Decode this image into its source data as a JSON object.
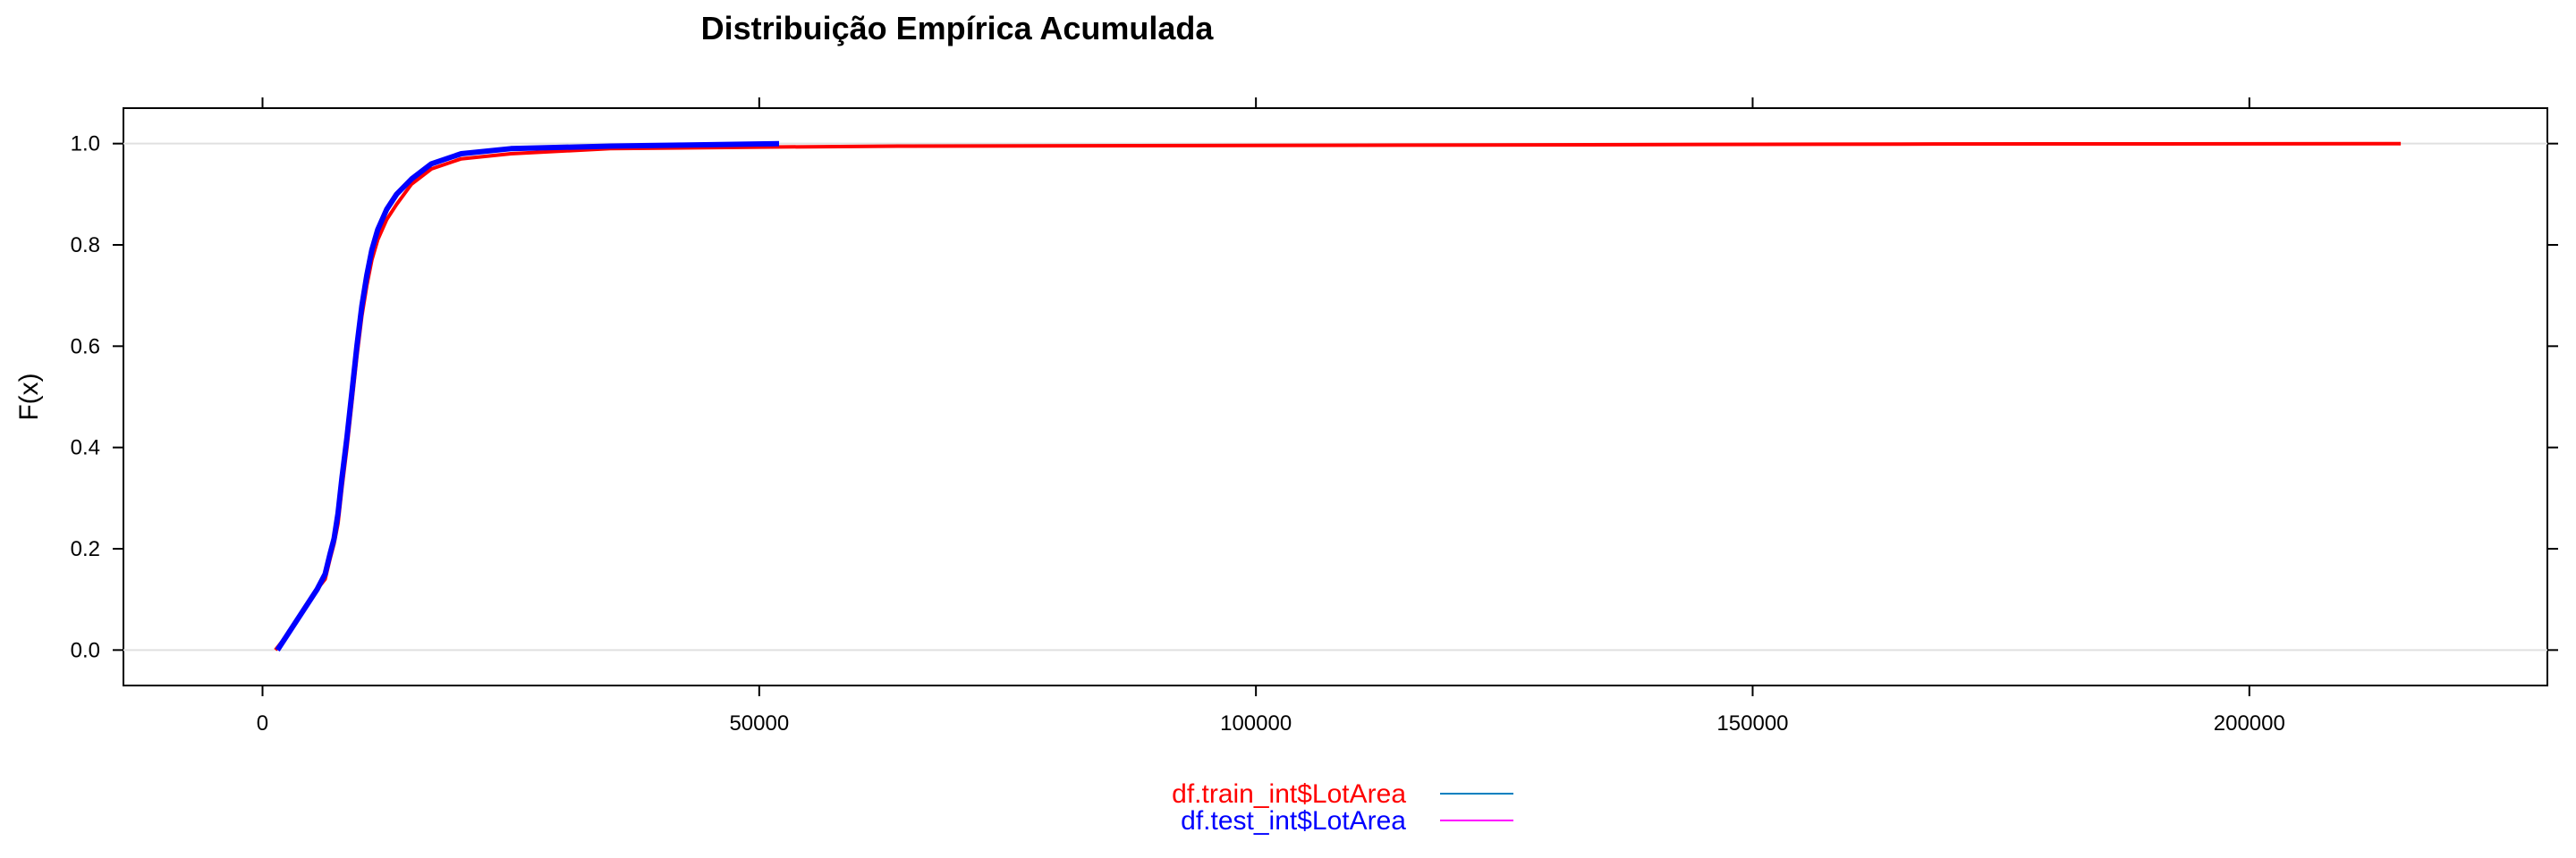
{
  "chart_data": {
    "type": "line",
    "title": "Distribuição Empírica Acumulada",
    "xlabel": "",
    "ylabel": "F(x)",
    "xlim": [
      -14000,
      230000
    ],
    "ylim": [
      -0.07,
      1.07
    ],
    "x_ticks": [
      0,
      50000,
      100000,
      150000,
      200000
    ],
    "x_tick_labels": [
      "0",
      "50000",
      "100000",
      "150000",
      "200000"
    ],
    "y_ticks": [
      0.0,
      0.2,
      0.4,
      0.6,
      0.8,
      1.0
    ],
    "y_tick_labels": [
      "0.0",
      "0.2",
      "0.4",
      "0.6",
      "0.8",
      "1.0"
    ],
    "grid": "horizontal reference lines at 0 and 1",
    "legend_position": "bottom-center",
    "series": [
      {
        "name": "df.train_int$LotArea",
        "color": "#ff0000",
        "legend_line_color": "#0080c0",
        "points": [
          [
            1300,
            0.0
          ],
          [
            2500,
            0.03
          ],
          [
            3500,
            0.06
          ],
          [
            4500,
            0.09
          ],
          [
            5500,
            0.12
          ],
          [
            6300,
            0.14
          ],
          [
            6800,
            0.18
          ],
          [
            7200,
            0.21
          ],
          [
            7600,
            0.25
          ],
          [
            8000,
            0.32
          ],
          [
            8500,
            0.4
          ],
          [
            9000,
            0.49
          ],
          [
            9500,
            0.58
          ],
          [
            10000,
            0.66
          ],
          [
            10500,
            0.72
          ],
          [
            11000,
            0.77
          ],
          [
            11600,
            0.81
          ],
          [
            12500,
            0.85
          ],
          [
            13500,
            0.88
          ],
          [
            15000,
            0.92
          ],
          [
            17000,
            0.95
          ],
          [
            20000,
            0.97
          ],
          [
            25000,
            0.98
          ],
          [
            35000,
            0.99
          ],
          [
            50000,
            0.993
          ],
          [
            64000,
            0.995
          ],
          [
            115000,
            0.997
          ],
          [
            165000,
            0.999
          ],
          [
            215245,
            1.0
          ]
        ]
      },
      {
        "name": "df.test_int$LotArea",
        "color": "#0000ff",
        "legend_line_color": "#ff00ff",
        "points": [
          [
            1500,
            0.0
          ],
          [
            2500,
            0.03
          ],
          [
            3500,
            0.06
          ],
          [
            4500,
            0.09
          ],
          [
            5500,
            0.12
          ],
          [
            6300,
            0.15
          ],
          [
            6800,
            0.19
          ],
          [
            7200,
            0.22
          ],
          [
            7600,
            0.27
          ],
          [
            8000,
            0.34
          ],
          [
            8500,
            0.42
          ],
          [
            9000,
            0.51
          ],
          [
            9500,
            0.6
          ],
          [
            10000,
            0.68
          ],
          [
            10500,
            0.74
          ],
          [
            11000,
            0.79
          ],
          [
            11600,
            0.83
          ],
          [
            12500,
            0.87
          ],
          [
            13500,
            0.9
          ],
          [
            15000,
            0.93
          ],
          [
            17000,
            0.96
          ],
          [
            20000,
            0.98
          ],
          [
            25000,
            0.99
          ],
          [
            35000,
            0.995
          ],
          [
            42000,
            0.997
          ],
          [
            52000,
            1.0
          ]
        ]
      }
    ]
  }
}
